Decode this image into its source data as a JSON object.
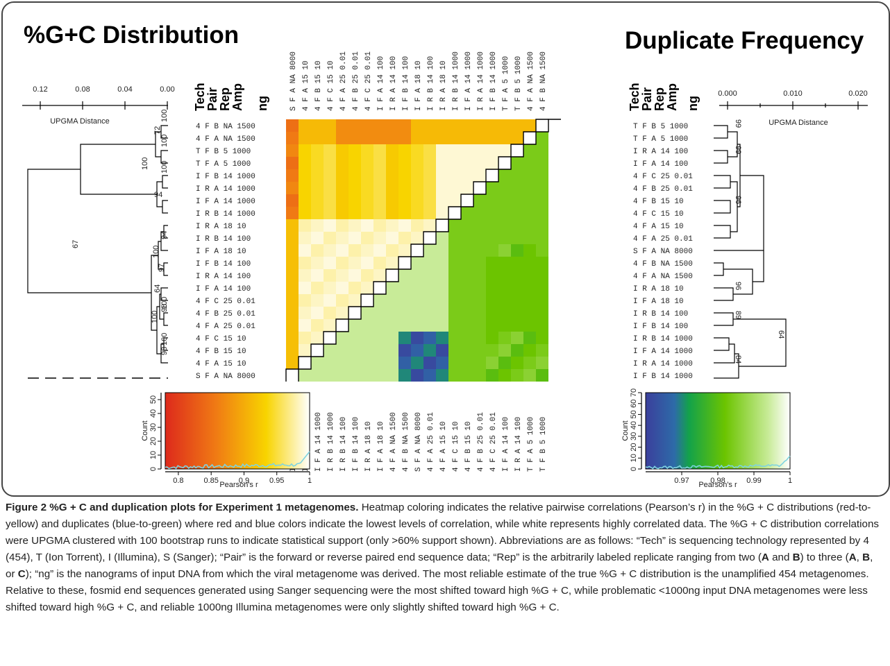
{
  "figure": {
    "left_title": "%G+C Distribution",
    "right_title": "Duplicate Frequency",
    "header_columns": [
      "Tech",
      "Pair",
      "Rep",
      "Amp",
      "ng"
    ],
    "colors": {
      "gc_low": "#e0301e",
      "gc_mid": "#f7d000",
      "gc_high": "#ffffff",
      "dup_low": "#3a3d9a",
      "dup_mid": "#6cc400",
      "dup_high": "#ffffff",
      "hist_line": "#7fd4e0"
    }
  },
  "rows_left": [
    "4 F B NA 1500",
    "4 F A NA 1500",
    "T F B 5 1000",
    "T F A 5 1000",
    "I F B 14 1000",
    "I R A 14 1000",
    "I F A 14 1000",
    "I R B 14 1000",
    "I R A 18 10",
    "I R B 14 100",
    "I F A 18 10",
    "I F B 14 100",
    "I R A 14 100",
    "I F A 14 100",
    "4 F C 25 0.01",
    "4 F B 25 0.01",
    "4 F A 25 0.01",
    "4 F C 15 10",
    "4 F B 15 10",
    "4 F A 15 10",
    "S F A NA 8000"
  ],
  "cols_top": [
    "S F A NA 8000",
    "4 F A 15 10",
    "4 F B 15 10",
    "4 F C 15 10",
    "4 F A 25 0.01",
    "4 F B 25 0.01",
    "4 F C 25 0.01",
    "I F A 14 100",
    "I R A 14 100",
    "I F B 14 100",
    "I F A 18 10",
    "I R B 14 100",
    "I R A 18 10",
    "I R B 14 1000",
    "I F A 14 1000",
    "I R A 14 1000",
    "I F B 14 1000",
    "T F A 5 1000",
    "T F B 5 1000",
    "4 F A NA 1500",
    "4 F B NA 1500"
  ],
  "rows_right": [
    "T F B 5 1000",
    "T F A 5 1000",
    "I R A 14 100",
    "I F A 14 100",
    "4 F C 25 0.01",
    "4 F B 25 0.01",
    "4 F B 15 10",
    "4 F C 15 10",
    "4 F A 15 10",
    "4 F A 25 0.01",
    "S F A NA 8000",
    "4 F B NA 1500",
    "4 F A NA 1500",
    "I R A 18 10",
    "I F A 18 10",
    "I R B 14 100",
    "I F B 14 100",
    "I R B 14 1000",
    "I F A 14 1000",
    "I R A 14 1000",
    "I F B 14 1000"
  ],
  "cols_bottom": [
    "I F B 14 1000",
    "I R A 14 1000",
    "I F A 14 1000",
    "I R B 14 1000",
    "I R B 14 100",
    "I F B 14 100",
    "I R A 18 10",
    "I F A 18 10",
    "4 F A NA 1500",
    "4 F B NA 1500",
    "S F A NA 8000",
    "4 F A 25 0.01",
    "4 F A 15 10",
    "4 F C 15 10",
    "4 F B 15 10",
    "4 F B 25 0.01",
    "4 F C 25 0.01",
    "I F A 14 100",
    "I R A 14 100",
    "T F A 5 1000",
    "T F B 5 1000"
  ],
  "left_dendrogram": {
    "axis_label": "UPGMA Distance",
    "ticks": [
      "0.12",
      "0.08",
      "0.04",
      "0.00"
    ],
    "bootstrap": [
      "100",
      "72",
      "100",
      "100",
      "100",
      "94",
      "67",
      "94",
      "100",
      "97",
      "64",
      "100",
      "98",
      "100",
      "100",
      "98"
    ]
  },
  "right_dendrogram": {
    "axis_label": "UPGMA Distance",
    "ticks": [
      "0.000",
      "0.010",
      "0.020"
    ],
    "bootstrap": [
      "99",
      "99",
      "96",
      "96",
      "89",
      "64",
      "84"
    ]
  },
  "chart_data": [
    {
      "type": "histogram",
      "title": "",
      "xlabel": "Pearson's r",
      "ylabel": "Count",
      "xlim": [
        0.78,
        1.0
      ],
      "ylim": [
        0,
        55
      ],
      "xticks": [
        "0.8",
        "0.85",
        "0.9",
        "0.95",
        "1"
      ],
      "yticks": [
        "0",
        "10",
        "20",
        "30",
        "40",
        "50"
      ],
      "colorscale": "red-to-yellow-to-white",
      "peak": {
        "x": 0.995,
        "y": 12
      }
    },
    {
      "type": "histogram",
      "title": "",
      "xlabel": "Pearson's r",
      "ylabel": "Count",
      "xlim": [
        0.96,
        1.0
      ],
      "ylim": [
        0,
        70
      ],
      "xticks": [
        "0.97",
        "0.98",
        "0.99",
        "1"
      ],
      "yticks": [
        "0",
        "10",
        "20",
        "30",
        "40",
        "50",
        "60",
        "70"
      ],
      "colorscale": "blue-to-green-to-white",
      "peak": {
        "x": 0.999,
        "y": 11
      }
    },
    {
      "type": "heatmap",
      "title": "",
      "note": "Upper-left triangle: %G+C distribution correlations (red-to-yellow); lower-right triangle: duplicate frequency correlations (blue-to-green). Values are Pearson's r.",
      "gc_rows": 21,
      "dup_rows": 21
    }
  ],
  "caption": {
    "title": "Figure 2 %G + C and duplication plots for Experiment 1 metagenomes.",
    "p1": " Heatmap coloring indicates the relative pairwise correlations (Pearson’s r) in the %G + C distributions (red-to-yellow) and duplicates (blue-to-green) where red and blue colors indicate the lowest levels of correlation, while white represents highly correlated data. The %G + C distribution correlations were UPGMA clustered with 100 bootstrap runs to indicate statistical support (only >60% support shown). Abbreviations are as follows: “Tech” is sequencing technology represented by 4 (454), T (Ion Torrent), I (Illumina), S (Sanger); “Pair” is the forward or reverse paired end sequence data; “Rep” is the arbitrarily labeled replicate ranging from two (",
    "a1": "A",
    "p2": " and ",
    "b1": "B",
    "p3": ") to three (",
    "a2": "A",
    "p4": ", ",
    "b2": "B",
    "p5": ", or ",
    "c2": "C",
    "p6": "); “ng” is the nanograms of input DNA from which the viral metagenome was derived. The most reliable estimate of the true %G + C distribution is the unamplified 454 metagenomes. Relative to these, fosmid end sequences generated using Sanger sequencing were the most shifted toward high %G + C, while problematic <1000ng input DNA metagenomes were less shifted toward high %G + C, and reliable 1000ng Illumina metagenomes were only slightly shifted toward high %G + C."
  }
}
